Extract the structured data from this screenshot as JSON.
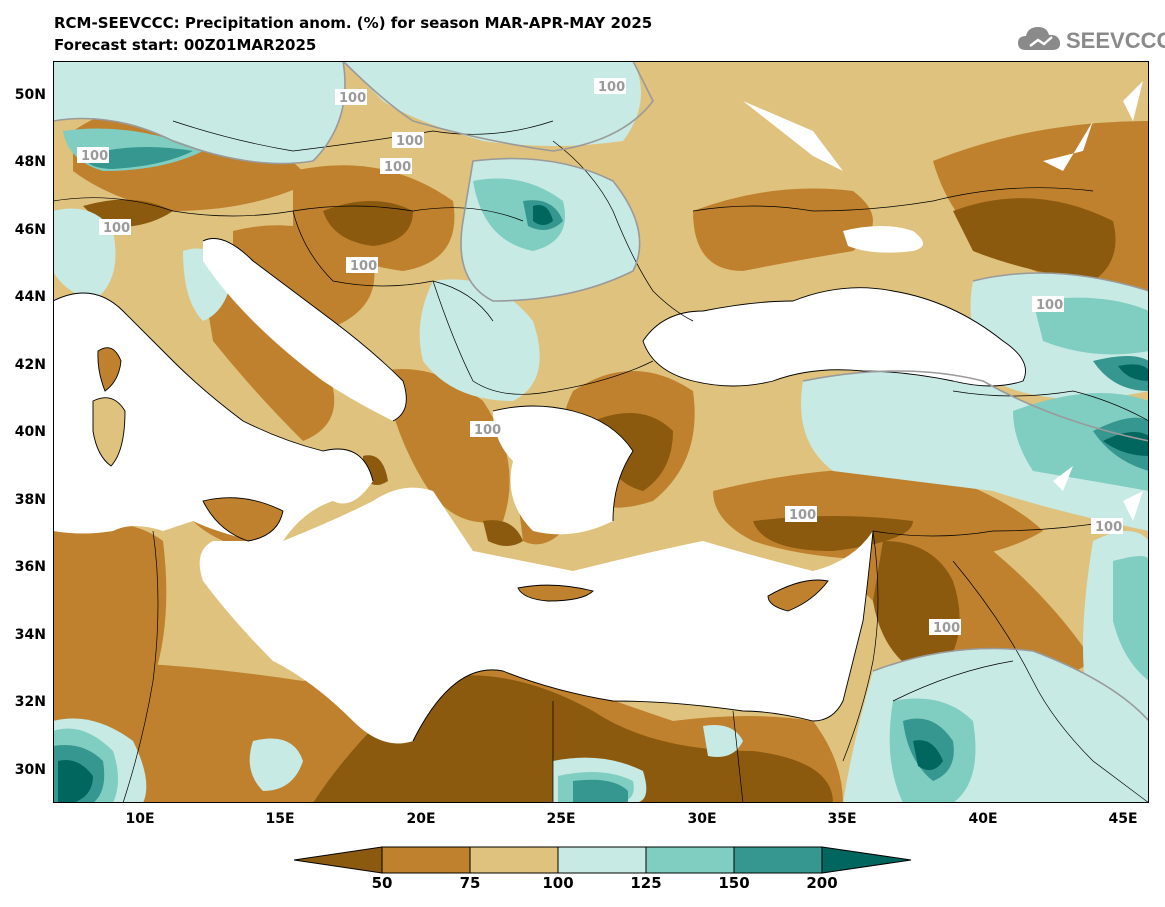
{
  "header": {
    "title_line1": "RCM-SEEVCCC: Precipitation anom. (%) for season MAR-APR-MAY 2025",
    "title_line2": "Forecast start: 00Z01MAR2025"
  },
  "logo": {
    "text": "SEEVCCC",
    "icon": "cloud-icon"
  },
  "map": {
    "variable": "Precipitation anomaly (%)",
    "season": "MAR-APR-MAY 2025",
    "lat_range": [
      29,
      51
    ],
    "lon_range": [
      7,
      46
    ],
    "lat_ticks": [
      "50N",
      "48N",
      "46N",
      "44N",
      "42N",
      "40N",
      "38N",
      "36N",
      "34N",
      "32N",
      "30N"
    ],
    "lon_ticks": [
      "10E",
      "15E",
      "20E",
      "25E",
      "30E",
      "35E",
      "40E",
      "45E"
    ],
    "contour_labels": [
      "100",
      "100",
      "100",
      "100",
      "100",
      "100",
      "100",
      "100",
      "100",
      "100",
      "100",
      "100"
    ]
  },
  "colorbar": {
    "levels": [
      "50",
      "75",
      "100",
      "125",
      "150",
      "200"
    ],
    "colors": [
      "#8c5a0f",
      "#bf812d",
      "#dfc27d",
      "#c7eae5",
      "#80cdc1",
      "#35978f",
      "#01665e"
    ]
  },
  "colors": {
    "sea": "#ffffff",
    "contour_line": "#9a9a9a",
    "border": "#000000"
  }
}
